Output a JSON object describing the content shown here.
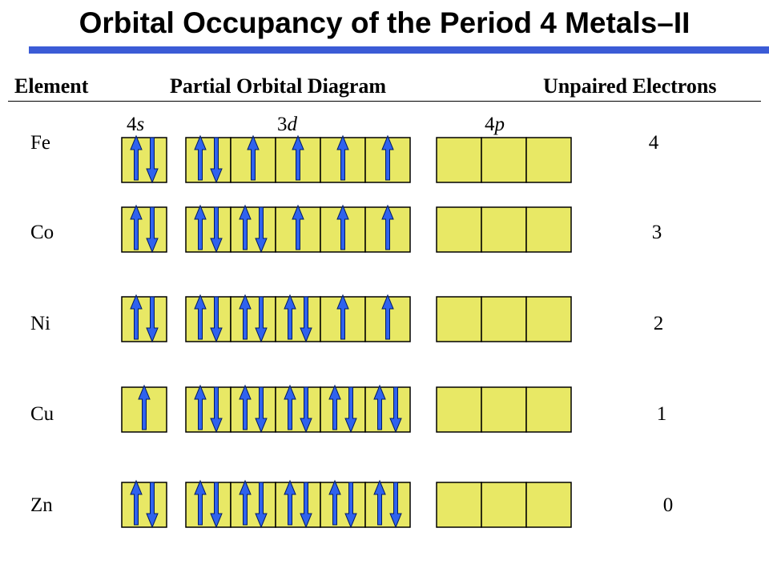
{
  "title": "Orbital Occupancy of the Period 4 Metals–II",
  "headers": {
    "element": "Element",
    "diagram": "Partial Orbital Diagram",
    "unpaired": "Unpaired Electrons"
  },
  "sublevels": [
    {
      "num": "4",
      "letter": "s"
    },
    {
      "num": "3",
      "letter": "d"
    },
    {
      "num": "4",
      "letter": "p"
    }
  ],
  "rows": [
    {
      "element": "Fe",
      "s": [
        "updown"
      ],
      "d": [
        "updown",
        "up",
        "up",
        "up",
        "up"
      ],
      "p": [
        "empty",
        "empty",
        "empty"
      ],
      "unpaired": "4"
    },
    {
      "element": "Co",
      "s": [
        "updown"
      ],
      "d": [
        "updown",
        "updown",
        "up",
        "up",
        "up"
      ],
      "p": [
        "empty",
        "empty",
        "empty"
      ],
      "unpaired": "3"
    },
    {
      "element": "Ni",
      "s": [
        "updown"
      ],
      "d": [
        "updown",
        "updown",
        "updown",
        "up",
        "up"
      ],
      "p": [
        "empty",
        "empty",
        "empty"
      ],
      "unpaired": "2"
    },
    {
      "element": "Cu",
      "s": [
        "up"
      ],
      "d": [
        "updown",
        "updown",
        "updown",
        "updown",
        "updown"
      ],
      "p": [
        "empty",
        "empty",
        "empty"
      ],
      "unpaired": "1"
    },
    {
      "element": "Zn",
      "s": [
        "updown"
      ],
      "d": [
        "updown",
        "updown",
        "updown",
        "updown",
        "updown"
      ],
      "p": [
        "empty",
        "empty",
        "empty"
      ],
      "unpaired": "0"
    }
  ],
  "colors": {
    "box_fill": "#e8e865",
    "box_stroke": "#000000",
    "arrow": "#2f62ee",
    "arrow_stroke": "#001a66",
    "title_rule": "#3b5bd6"
  }
}
